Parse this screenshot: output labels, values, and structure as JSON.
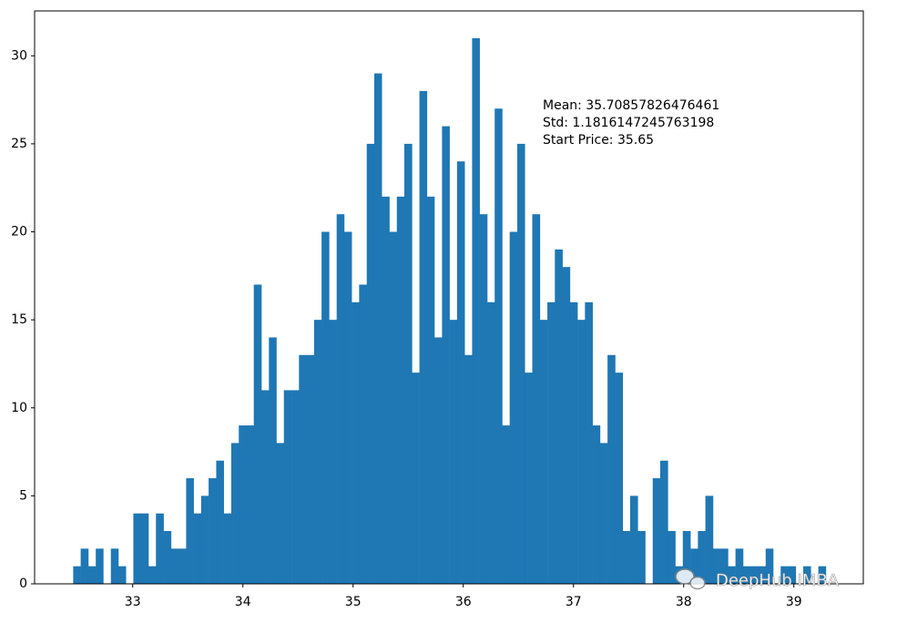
{
  "chart_data": {
    "type": "histogram",
    "bins": [
      32.46,
      32.528,
      32.597,
      32.665,
      32.733,
      32.802,
      32.87,
      32.938,
      33.006,
      33.075,
      33.143,
      33.211,
      33.28,
      33.348,
      33.416,
      33.485,
      33.553,
      33.621,
      33.689,
      33.758,
      33.826,
      33.894,
      33.963,
      34.031,
      34.099,
      34.168,
      34.236,
      34.304,
      34.372,
      34.441,
      34.509,
      34.577,
      34.646,
      34.714,
      34.782,
      34.851,
      34.919,
      34.987,
      35.055,
      35.124,
      35.192,
      35.26,
      35.329,
      35.397,
      35.465,
      35.534,
      35.602,
      35.67,
      35.738,
      35.807,
      35.875,
      35.943,
      36.012,
      36.08,
      36.148,
      36.217,
      36.285,
      36.353,
      36.421,
      36.49,
      36.558,
      36.626,
      36.695,
      36.763,
      36.831,
      36.9,
      36.968,
      37.036,
      37.104,
      37.173,
      37.241,
      37.309,
      37.378,
      37.446,
      37.514,
      37.583,
      37.651,
      37.719,
      37.787,
      37.856,
      37.924,
      37.992,
      38.061,
      38.129,
      38.197,
      38.266,
      38.334,
      38.402,
      38.47,
      38.539,
      38.607,
      38.675,
      38.744,
      38.812,
      38.88,
      38.949,
      39.017,
      39.085,
      39.153,
      39.222,
      39.29
    ],
    "values": [
      1,
      2,
      1,
      2,
      0,
      2,
      1,
      0,
      4,
      4,
      1,
      4,
      3,
      2,
      2,
      6,
      4,
      5,
      6,
      7,
      4,
      8,
      9,
      9,
      17,
      11,
      14,
      8,
      11,
      11,
      13,
      13,
      15,
      20,
      15,
      21,
      20,
      16,
      17,
      25,
      29,
      22,
      20,
      22,
      25,
      12,
      28,
      22,
      14,
      26,
      15,
      24,
      13,
      31,
      21,
      16,
      27,
      9,
      20,
      25,
      12,
      21,
      15,
      16,
      19,
      18,
      16,
      15,
      16,
      9,
      8,
      13,
      12,
      3,
      5,
      3,
      0,
      6,
      7,
      3,
      1,
      3,
      2,
      3,
      5,
      2,
      2,
      1,
      2,
      1,
      1,
      1,
      2,
      0,
      1,
      1,
      0,
      1,
      0,
      1
    ],
    "color": "#1f77b4",
    "xlim": [
      32.11,
      39.63
    ],
    "ylim": [
      0,
      32.55
    ],
    "xticks": [
      33,
      34,
      35,
      36,
      37,
      38,
      39
    ],
    "yticks": [
      0,
      5,
      10,
      15,
      20,
      25,
      30
    ],
    "annotations": [
      "Mean: 35.70857826476461",
      "Std: 1.1816147245763198",
      "Start Price: 35.65"
    ],
    "watermark": "DeepHub IMBA"
  }
}
